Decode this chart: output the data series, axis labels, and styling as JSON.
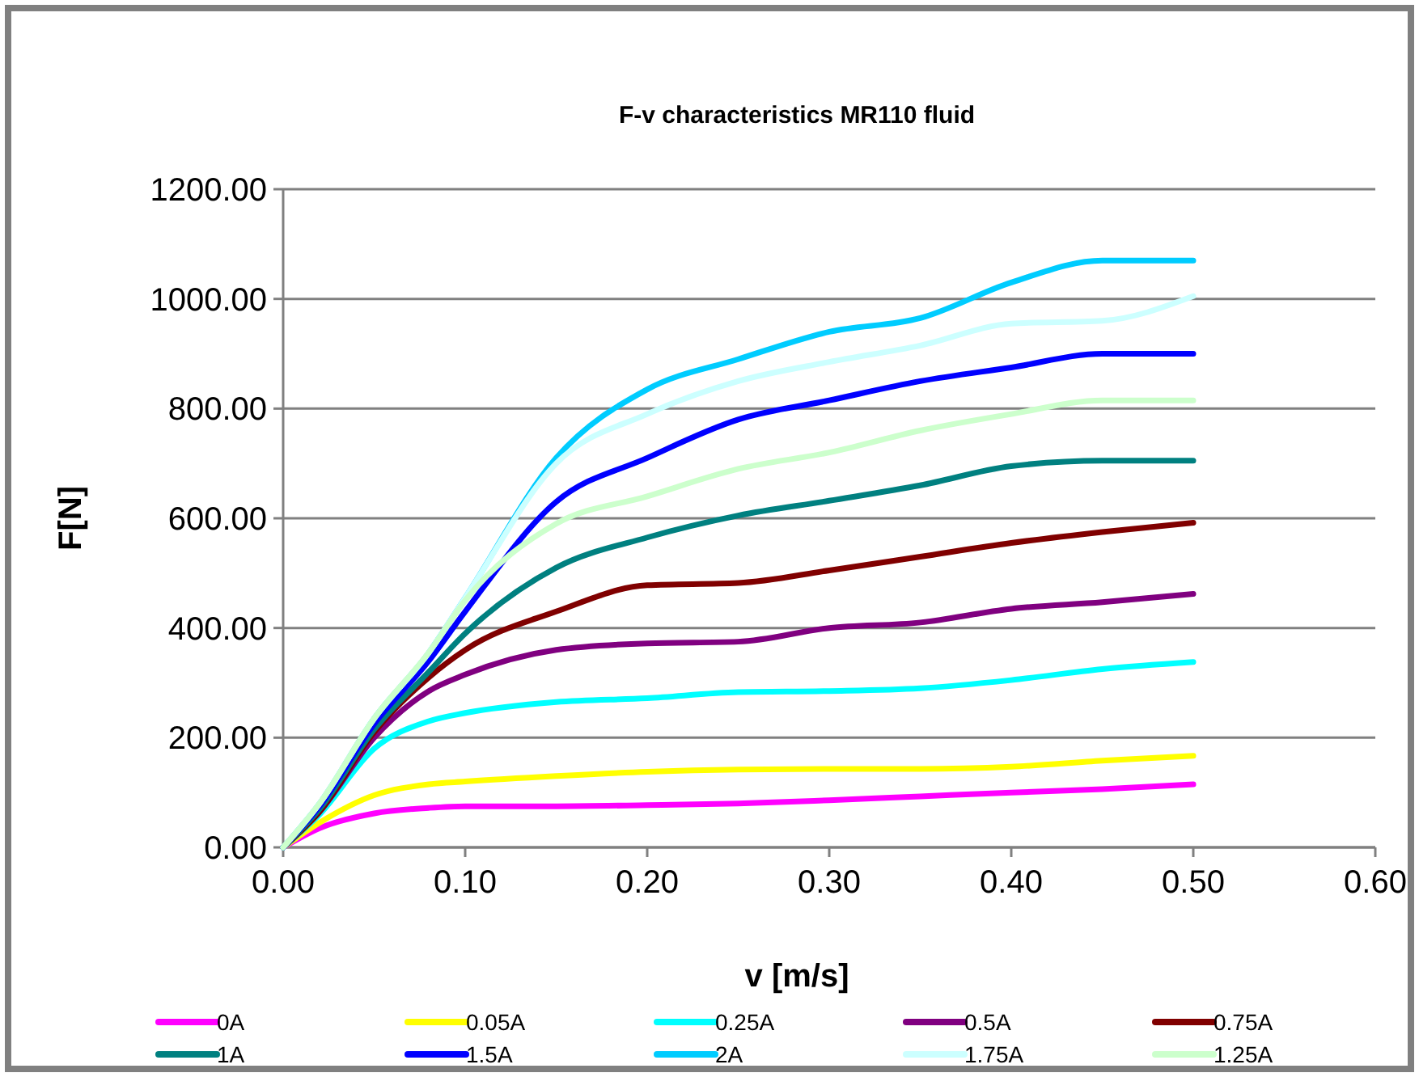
{
  "chart_data": {
    "type": "line",
    "title": "F-v characteristics MR110 fluid",
    "xlabel": "v [m/s]",
    "ylabel": "F[N]",
    "x": [
      0,
      0.02,
      0.05,
      0.08,
      0.1,
      0.15,
      0.2,
      0.25,
      0.3,
      0.35,
      0.4,
      0.45,
      0.5
    ],
    "xlim": [
      0,
      0.6
    ],
    "xticks": [
      {
        "value": 0,
        "label": "0.00"
      },
      {
        "value": 0.1,
        "label": "0.10"
      },
      {
        "value": 0.2,
        "label": "0.20"
      },
      {
        "value": 0.3,
        "label": "0.30"
      },
      {
        "value": 0.4,
        "label": "0.40"
      },
      {
        "value": 0.5,
        "label": "0.50"
      },
      {
        "value": 0.6,
        "label": "0.60"
      }
    ],
    "ylim": [
      0,
      1200
    ],
    "yticks": [
      {
        "value": 0,
        "label": "0.00"
      },
      {
        "value": 200,
        "label": "200.00"
      },
      {
        "value": 400,
        "label": "400.00"
      },
      {
        "value": 600,
        "label": "600.00"
      },
      {
        "value": 800,
        "label": "800.00"
      },
      {
        "value": 1000,
        "label": "1000.00"
      },
      {
        "value": 1200,
        "label": "1200.00"
      }
    ],
    "grid": "y",
    "legend": "bottom",
    "marker": "none",
    "line_style": "solid",
    "series": [
      {
        "name": "0A",
        "color": "#ff00ff",
        "values": [
          0,
          35,
          62,
          72,
          75,
          75,
          77,
          80,
          86,
          93,
          100,
          106,
          115
        ]
      },
      {
        "name": "0.05A",
        "color": "#ffff00",
        "values": [
          0,
          45,
          95,
          115,
          120,
          130,
          138,
          142,
          143,
          143,
          147,
          158,
          167
        ]
      },
      {
        "name": "0.25A",
        "color": "#00ffff",
        "values": [
          0,
          60,
          180,
          230,
          245,
          265,
          272,
          283,
          285,
          290,
          305,
          325,
          338
        ]
      },
      {
        "name": "0.5A",
        "color": "#800080",
        "values": [
          0,
          65,
          200,
          285,
          315,
          360,
          372,
          375,
          400,
          410,
          435,
          447,
          462
        ]
      },
      {
        "name": "0.75A",
        "color": "#800000",
        "values": [
          0,
          65,
          210,
          310,
          360,
          430,
          478,
          482,
          505,
          530,
          555,
          575,
          592
        ]
      },
      {
        "name": "1A",
        "color": "#008080",
        "values": [
          0,
          70,
          215,
          320,
          390,
          510,
          565,
          605,
          632,
          660,
          695,
          705,
          705
        ]
      },
      {
        "name": "1.5A",
        "color": "#0000ff",
        "values": [
          0,
          75,
          225,
          340,
          430,
          630,
          710,
          780,
          815,
          850,
          875,
          900,
          900
        ]
      },
      {
        "name": "2A",
        "color": "#00ccff",
        "values": [
          0,
          80,
          235,
          355,
          455,
          710,
          835,
          890,
          940,
          965,
          1030,
          1070,
          1070
        ]
      },
      {
        "name": "1.75A",
        "color": "#ccffff",
        "values": [
          0,
          80,
          235,
          355,
          455,
          700,
          790,
          850,
          885,
          915,
          955,
          960,
          1005
        ]
      },
      {
        "name": "1.25A",
        "color": "#ccffcc",
        "values": [
          0,
          80,
          235,
          355,
          450,
          590,
          640,
          690,
          720,
          760,
          790,
          815,
          815
        ]
      }
    ]
  }
}
